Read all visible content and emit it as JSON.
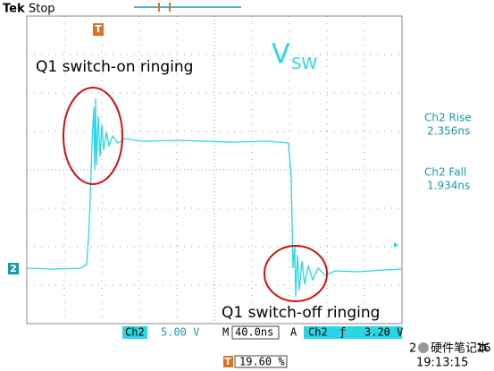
{
  "header": {
    "brand": "Tek",
    "state": "Stop",
    "trigger_marker": "T"
  },
  "annotations": {
    "switch_on": "Q1 switch-on ringing",
    "switch_off": "Q1 switch-off ringing",
    "signal": "V",
    "signal_sub": "SW"
  },
  "measurements": [
    {
      "label": "Ch2 Rise",
      "value": "2.356ns"
    },
    {
      "label": "Ch2 Fall",
      "value": "1.934ns"
    }
  ],
  "channel_marker": "2",
  "status": {
    "channel": "Ch2",
    "scale": "5.00 V",
    "time_prefix": "M",
    "timebase": "40.0ns",
    "trigger_mode": "A",
    "trigger_channel": "Ch2",
    "trigger_slope": "ƒ",
    "trigger_level": "3.20 V",
    "position_marker": "T",
    "position": "19.60 %"
  },
  "footer": {
    "date_start": "2",
    "watermark": "硬件笔记本",
    "date_end": "16",
    "time": "19:13:15"
  }
}
